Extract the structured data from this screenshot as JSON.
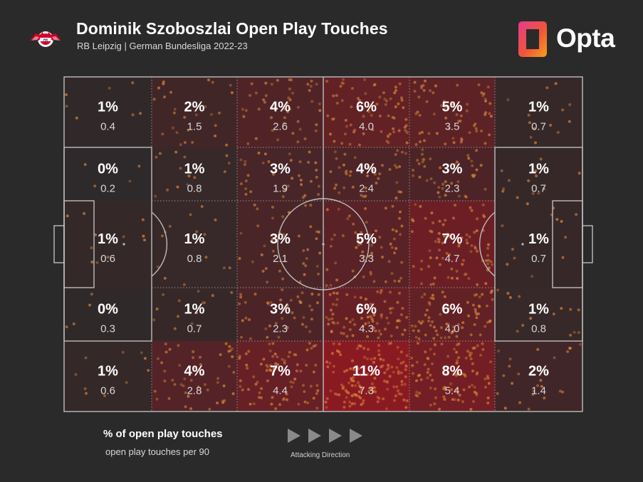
{
  "header": {
    "title": "Dominik Szoboszlai Open Play Touches",
    "subtitle": "RB Leipzig | German Bundesliga 2022-23",
    "club_logo_icon": "rb-leipzig-crest-icon",
    "brand_icon": "opta-logo-icon",
    "brand_name": "Opta"
  },
  "colors": {
    "background": "#2a2a2a",
    "pitch_lines": "#bdbdbd",
    "dots": "#e08a3c",
    "heat_low": "#2a2a2a",
    "heat_high": "#8a1a22",
    "text_primary": "#ffffff",
    "text_secondary": "#d8d8d8"
  },
  "chart_data": {
    "type": "heatmap",
    "rows": 5,
    "cols": 6,
    "attacking_direction": "left-to-right",
    "cells": [
      [
        {
          "pct": "1%",
          "per90": "0.4",
          "value": 0.4
        },
        {
          "pct": "2%",
          "per90": "1.5",
          "value": 1.5
        },
        {
          "pct": "4%",
          "per90": "2.6",
          "value": 2.6
        },
        {
          "pct": "6%",
          "per90": "4.0",
          "value": 4.0
        },
        {
          "pct": "5%",
          "per90": "3.5",
          "value": 3.5
        },
        {
          "pct": "1%",
          "per90": "0.7",
          "value": 0.7
        }
      ],
      [
        {
          "pct": "0%",
          "per90": "0.2",
          "value": 0.2
        },
        {
          "pct": "1%",
          "per90": "0.8",
          "value": 0.8
        },
        {
          "pct": "3%",
          "per90": "1.9",
          "value": 1.9
        },
        {
          "pct": "4%",
          "per90": "2.4",
          "value": 2.4
        },
        {
          "pct": "3%",
          "per90": "2.3",
          "value": 2.3
        },
        {
          "pct": "1%",
          "per90": "0.7",
          "value": 0.7
        }
      ],
      [
        {
          "pct": "1%",
          "per90": "0.6",
          "value": 0.6
        },
        {
          "pct": "1%",
          "per90": "0.8",
          "value": 0.8
        },
        {
          "pct": "3%",
          "per90": "2.1",
          "value": 2.1
        },
        {
          "pct": "5%",
          "per90": "3.3",
          "value": 3.3
        },
        {
          "pct": "7%",
          "per90": "4.7",
          "value": 4.7
        },
        {
          "pct": "1%",
          "per90": "0.7",
          "value": 0.7
        }
      ],
      [
        {
          "pct": "0%",
          "per90": "0.3",
          "value": 0.3
        },
        {
          "pct": "1%",
          "per90": "0.7",
          "value": 0.7
        },
        {
          "pct": "3%",
          "per90": "2.3",
          "value": 2.3
        },
        {
          "pct": "6%",
          "per90": "4.3",
          "value": 4.3
        },
        {
          "pct": "6%",
          "per90": "4.0",
          "value": 4.0
        },
        {
          "pct": "1%",
          "per90": "0.8",
          "value": 0.8
        }
      ],
      [
        {
          "pct": "1%",
          "per90": "0.6",
          "value": 0.6
        },
        {
          "pct": "4%",
          "per90": "2.8",
          "value": 2.8
        },
        {
          "pct": "7%",
          "per90": "4.4",
          "value": 4.4
        },
        {
          "pct": "11%",
          "per90": "7.3",
          "value": 7.3
        },
        {
          "pct": "8%",
          "per90": "5.4",
          "value": 5.4
        },
        {
          "pct": "2%",
          "per90": "1.4",
          "value": 1.4
        }
      ]
    ]
  },
  "legend": {
    "main": "% of open play touches",
    "sub": "open play touches per 90",
    "direction_label": "Attacking Direction",
    "direction_icon": "play-arrow-icon"
  }
}
